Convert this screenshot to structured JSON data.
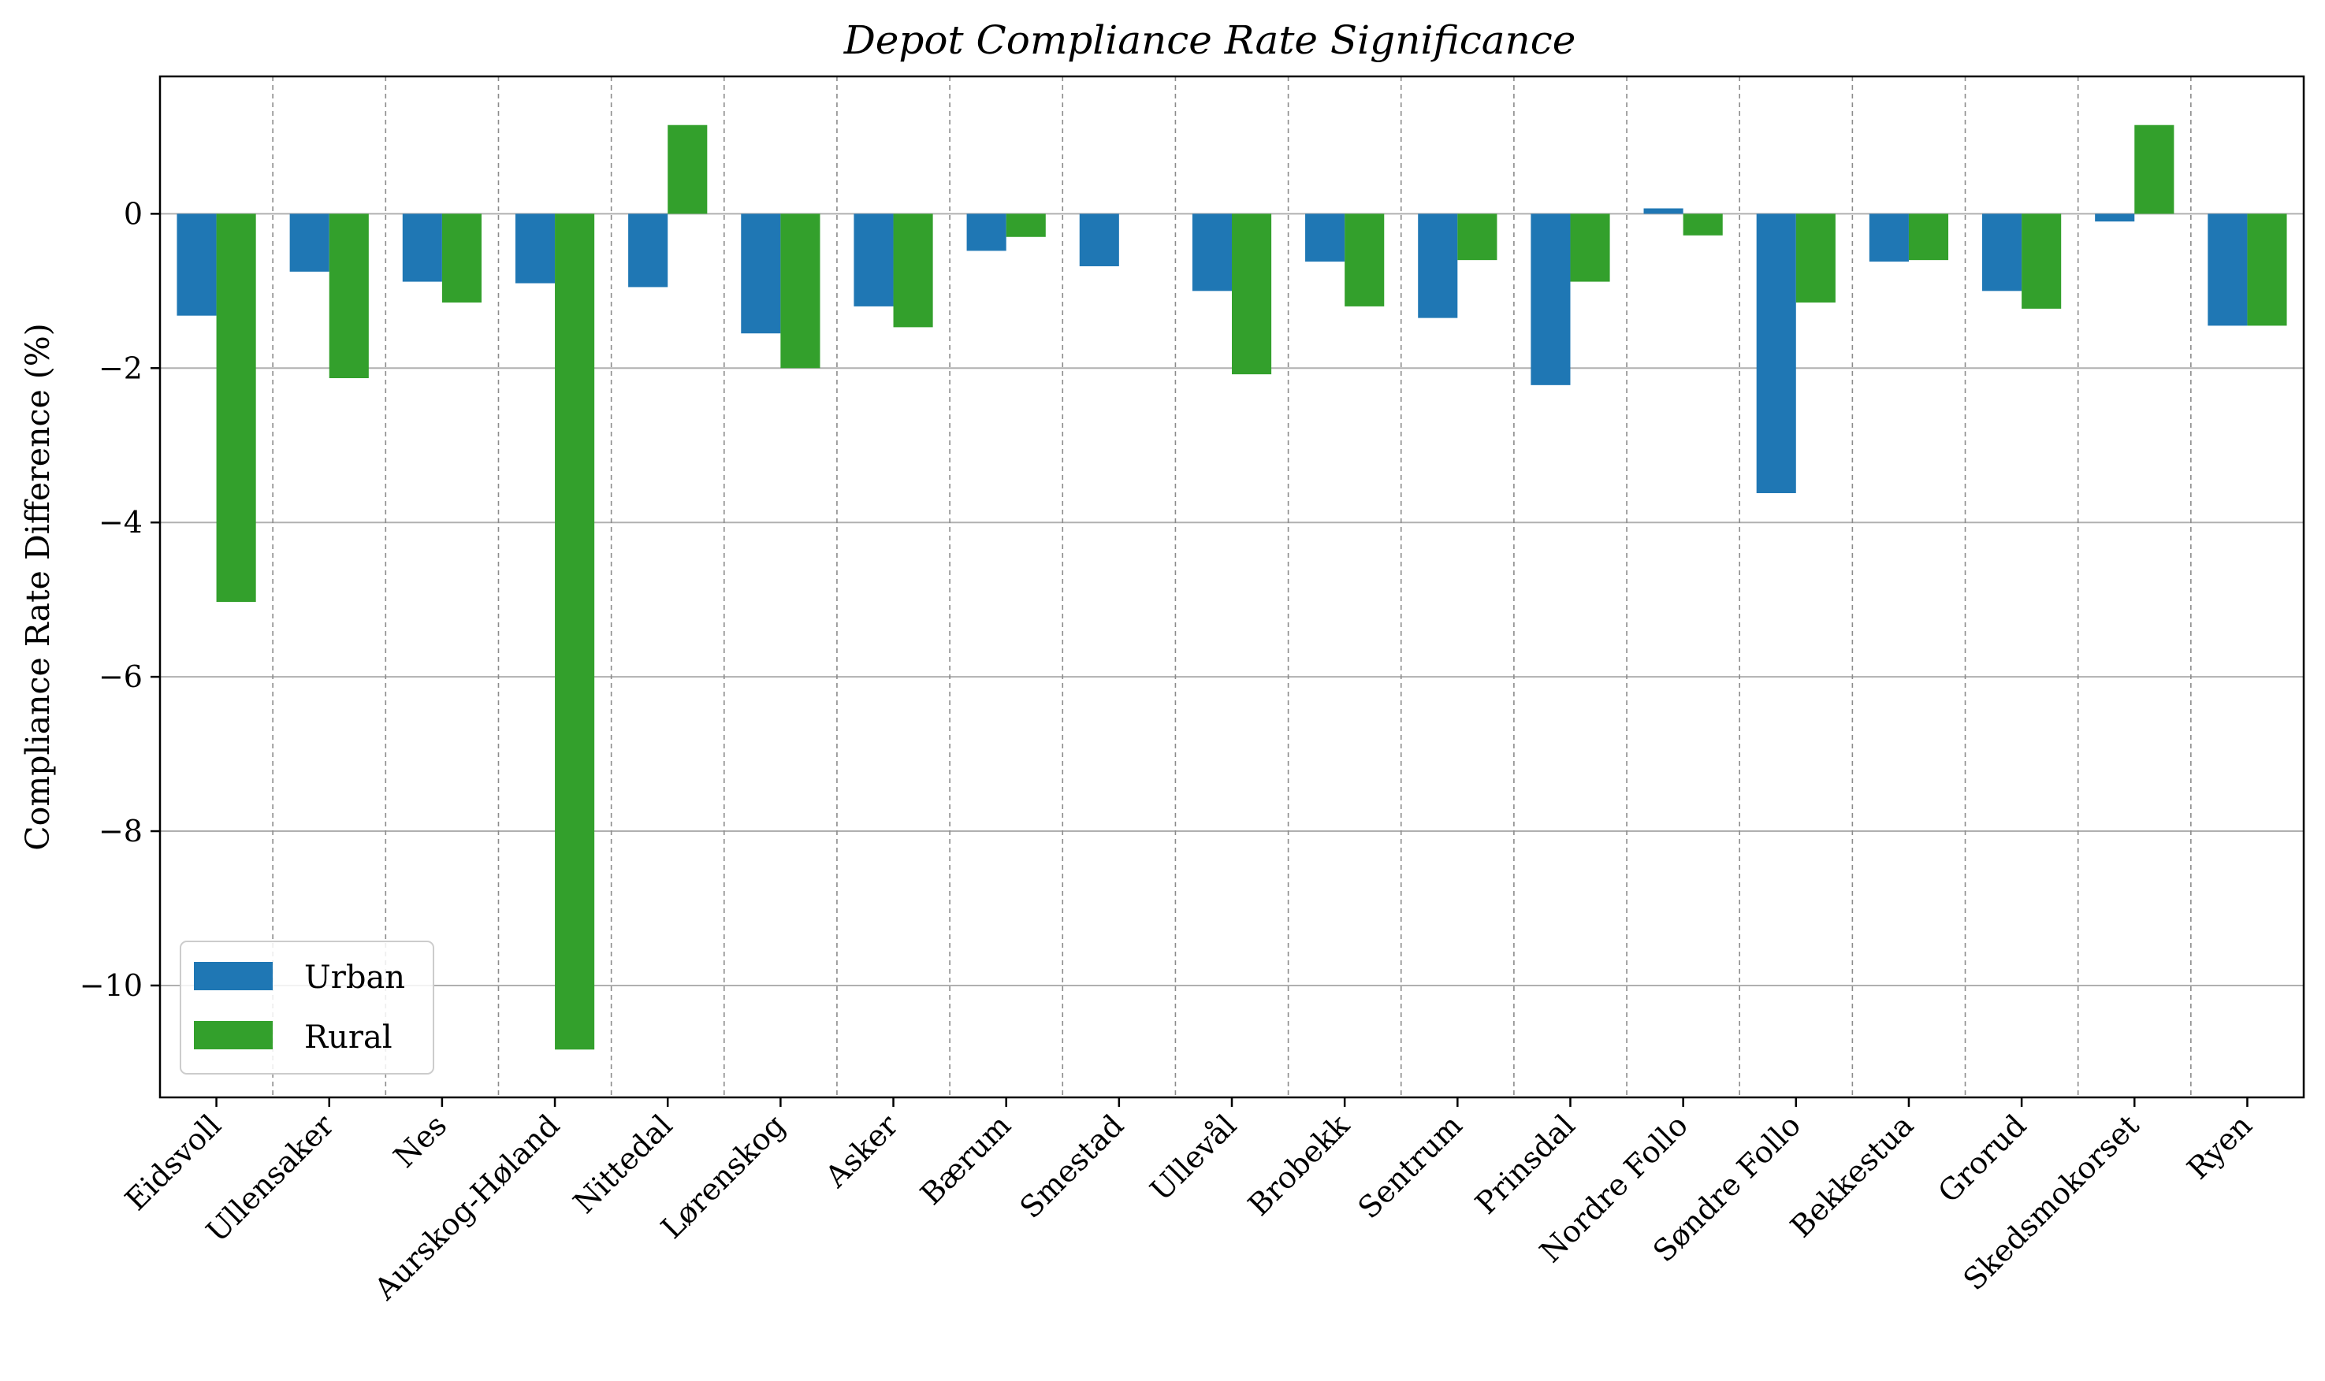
{
  "chart_data": {
    "type": "bar",
    "title": "Depot Compliance Rate Significance",
    "xlabel": "",
    "ylabel": "Compliance Rate Difference (%)",
    "ylim": [
      -11.45,
      1.78
    ],
    "yticks": [
      0,
      -2,
      -4,
      -6,
      -8,
      -10
    ],
    "ytick_labels": [
      "0",
      "−2",
      "−4",
      "−6",
      "−8",
      "−10"
    ],
    "grid": "horizontal lines at y ticks; dashed vertical separators between categories",
    "legend": "lower-left",
    "categories": [
      "Eidsvoll",
      "Ullensaker",
      "Nes",
      "Aurskog-Høland",
      "Nittedal",
      "Lørenskog",
      "Asker",
      "Bærum",
      "Smestad",
      "Ullevål",
      "Brobekk",
      "Sentrum",
      "Prinsdal",
      "Nordre Follo",
      "Søndre Follo",
      "Bekkestua",
      "Grorud",
      "Skedsmokorset",
      "Ryen"
    ],
    "series": [
      {
        "name": "Urban",
        "color": "#1f77b4",
        "values": [
          -1.32,
          -0.75,
          -0.88,
          -0.9,
          -0.95,
          -1.55,
          -1.2,
          -0.48,
          -0.68,
          -1.0,
          -0.62,
          -1.35,
          -2.22,
          0.07,
          -3.62,
          -0.62,
          -1.0,
          -0.1,
          -1.45
        ]
      },
      {
        "name": "Rural",
        "color": "#33a02c",
        "values": [
          -5.03,
          -2.13,
          -1.15,
          -10.83,
          1.15,
          -2.0,
          -1.47,
          -0.3,
          0.0,
          -2.08,
          -1.2,
          -0.6,
          -0.88,
          -0.28,
          -1.15,
          -0.6,
          -1.23,
          1.15,
          -1.45
        ]
      }
    ]
  },
  "colors": {
    "urban": "#1f77b4",
    "rural": "#33a02c",
    "grid": "#b0b0b0",
    "separator": "#8c8c8c"
  }
}
